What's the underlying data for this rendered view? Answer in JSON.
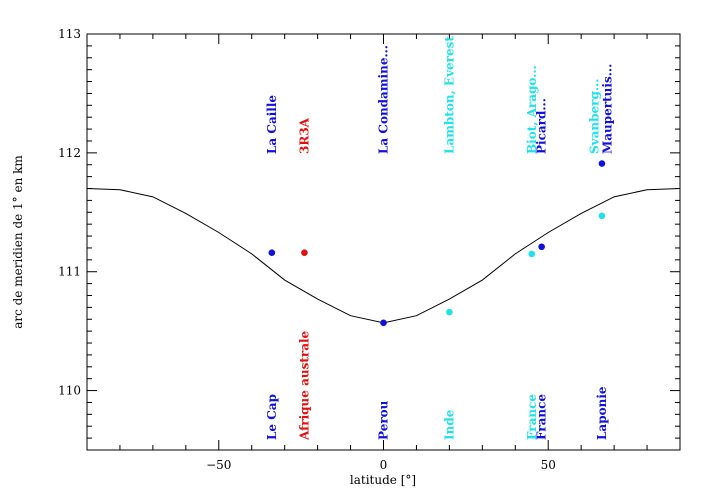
{
  "chart_data": {
    "type": "scatter",
    "title": "",
    "xlabel": "latitude [°]",
    "ylabel": "arc de meridien de 1° en km",
    "xlim": [
      -90,
      90
    ],
    "ylim": [
      109.5,
      113
    ],
    "x_ticks": [
      -50,
      0,
      50
    ],
    "x_tick_labels": [
      "−50",
      "0",
      "50"
    ],
    "y_ticks": [
      110,
      111,
      112,
      113
    ],
    "y_tick_labels": [
      "110",
      "111",
      "112",
      "113"
    ],
    "grid": false,
    "legend": "none",
    "curve": {
      "name": "",
      "color": "#000000",
      "x": [
        -90,
        -80,
        -70,
        -60,
        -50,
        -40,
        -30,
        -20,
        -10,
        0,
        10,
        20,
        30,
        40,
        50,
        60,
        70,
        80,
        90
      ],
      "y": [
        111.7,
        111.69,
        111.63,
        111.49,
        111.33,
        111.15,
        110.93,
        110.77,
        110.63,
        110.57,
        110.63,
        110.77,
        110.93,
        111.15,
        111.33,
        111.49,
        111.63,
        111.69,
        111.7
      ]
    },
    "points": [
      {
        "x": -33.9,
        "y": 111.16,
        "color": "#1010d8"
      },
      {
        "x": -24,
        "y": 111.16,
        "color": "#e01010"
      },
      {
        "x": 0,
        "y": 110.57,
        "color": "#1010d8"
      },
      {
        "x": 20,
        "y": 110.66,
        "color": "#20e0e8"
      },
      {
        "x": 45,
        "y": 111.15,
        "color": "#20e0e8"
      },
      {
        "x": 48,
        "y": 111.21,
        "color": "#1010d8"
      },
      {
        "x": 66.3,
        "y": 111.47,
        "color": "#20e0e8"
      },
      {
        "x": 66.3,
        "y": 111.91,
        "color": "#1010d8"
      }
    ],
    "top_labels": [
      {
        "x": -33.9,
        "text": "La Caille",
        "color": "#1010d8"
      },
      {
        "x": -24,
        "text": "3R3A",
        "color": "#e01010"
      },
      {
        "x": 0,
        "text": "La Condamine...",
        "color": "#1010d8"
      },
      {
        "x": 20,
        "text": "Lambton, Everest",
        "color": "#20e0e8"
      },
      {
        "x": 45,
        "text": "Biot, Arago...",
        "color": "#20e0e8"
      },
      {
        "x": 48,
        "text": "Picard...",
        "color": "#1010d8"
      },
      {
        "x": 64,
        "text": "Svanberg...",
        "color": "#20e0e8"
      },
      {
        "x": 68,
        "text": "Maupertuis...",
        "color": "#1010d8"
      }
    ],
    "bottom_labels": [
      {
        "x": -33.9,
        "text": "Le Cap",
        "color": "#1010d8"
      },
      {
        "x": -24,
        "text": "Afrique australe",
        "color": "#e01010"
      },
      {
        "x": 0,
        "text": "Perou",
        "color": "#1010d8"
      },
      {
        "x": 20,
        "text": "Inde",
        "color": "#20e0e8"
      },
      {
        "x": 45,
        "text": "France",
        "color": "#20e0e8"
      },
      {
        "x": 48,
        "text": "France",
        "color": "#1010d8"
      },
      {
        "x": 66.3,
        "text": "Laponie",
        "color": "#1010d8"
      }
    ]
  }
}
